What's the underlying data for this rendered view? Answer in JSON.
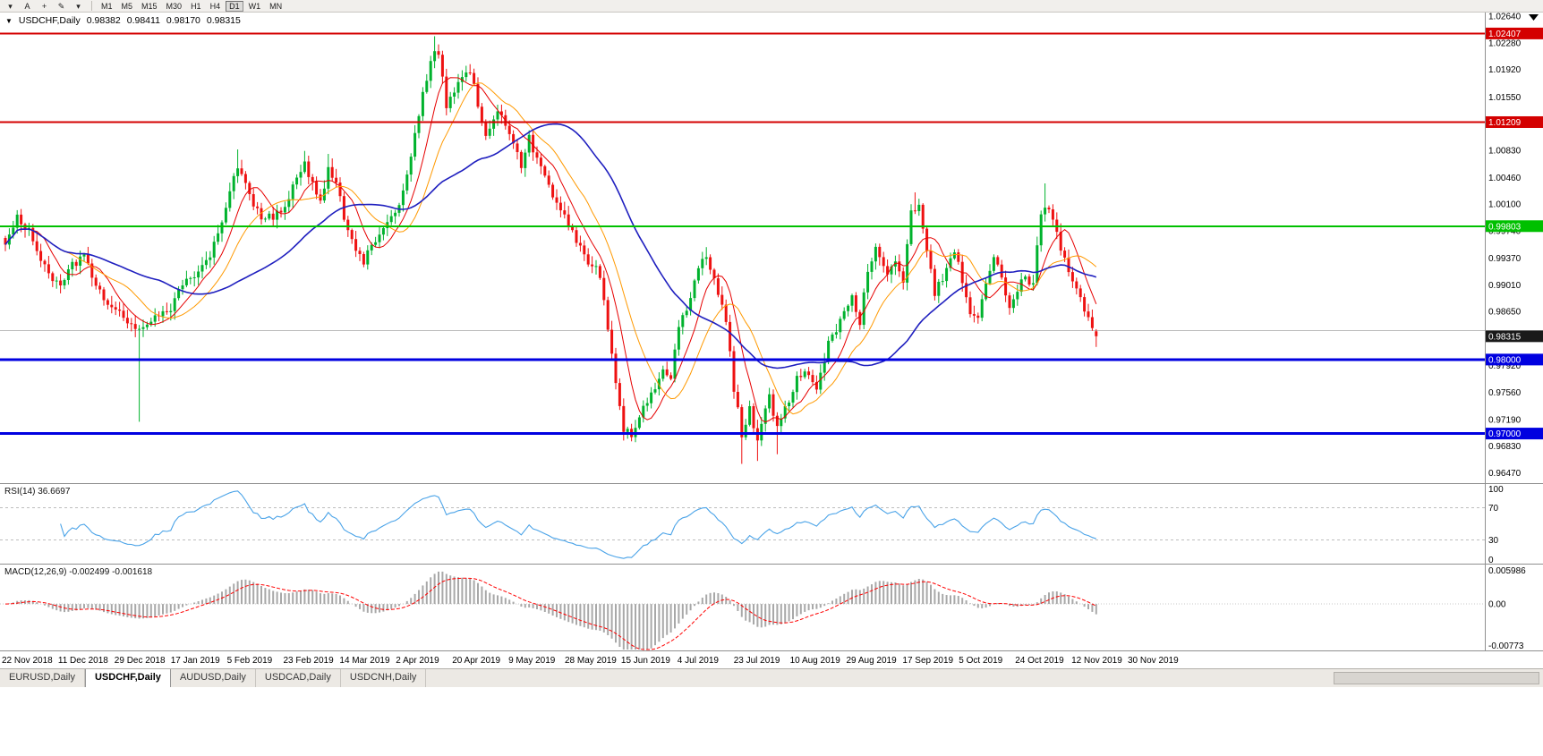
{
  "toolbar": {
    "tools": [
      {
        "name": "chart-menu",
        "glyph": "▾"
      },
      {
        "name": "text-tool",
        "glyph": "A"
      },
      {
        "name": "crosshair-tool",
        "glyph": "+"
      },
      {
        "name": "draw-tools",
        "glyph": "✎"
      },
      {
        "name": "draw-tools-more",
        "glyph": "▾"
      }
    ],
    "timeframes": [
      {
        "label": "M1",
        "active": false
      },
      {
        "label": "M5",
        "active": false
      },
      {
        "label": "M15",
        "active": false
      },
      {
        "label": "M30",
        "active": false
      },
      {
        "label": "H1",
        "active": false
      },
      {
        "label": "H4",
        "active": false
      },
      {
        "label": "D1",
        "active": true
      },
      {
        "label": "W1",
        "active": false
      },
      {
        "label": "MN",
        "active": false
      }
    ]
  },
  "header": {
    "symbol": "USDCHF,Daily",
    "open": "0.98382",
    "high": "0.98411",
    "low": "0.98170",
    "close": "0.98315"
  },
  "tabs": [
    {
      "label": "EURUSD,Daily",
      "active": false
    },
    {
      "label": "USDCHF,Daily",
      "active": true
    },
    {
      "label": "AUDUSD,Daily",
      "active": false
    },
    {
      "label": "USDCAD,Daily",
      "active": false
    },
    {
      "label": "USDCNH,Daily",
      "active": false
    }
  ],
  "chart_data": {
    "type": "candlestick",
    "symbol": "USDCHF",
    "timeframe": "Daily",
    "last": {
      "open": 0.98382,
      "high": 0.98411,
      "low": 0.9817,
      "close": 0.98315
    },
    "price_axis": {
      "top": 1.0269,
      "bottom": 0.9633,
      "ticks": [
        "1.02640",
        "1.02280",
        "1.01920",
        "1.01550",
        "1.00830",
        "1.00460",
        "1.00100",
        "0.99740",
        "0.99370",
        "0.99010",
        "0.98650",
        "0.97920",
        "0.97560",
        "0.97190",
        "0.96830",
        "0.96470"
      ]
    },
    "hlines": [
      {
        "price": 1.02407,
        "color": "#d40000",
        "width": 2,
        "label": "1.02407"
      },
      {
        "price": 1.01209,
        "color": "#d40000",
        "width": 2,
        "label": "1.01209"
      },
      {
        "price": 0.99803,
        "color": "#00c000",
        "width": 2,
        "label": "0.99803"
      },
      {
        "price": 0.9839,
        "color": "#bcbcbc",
        "width": 1,
        "label": null
      },
      {
        "price": 0.98,
        "color": "#0000e0",
        "width": 3,
        "label": "0.98000"
      },
      {
        "price": 0.97,
        "color": "#0000e0",
        "width": 3,
        "label": "0.97000"
      }
    ],
    "price_marker": {
      "price": 0.98315,
      "text": "0.98315",
      "bg": "#1a1a1a",
      "fg": "#ffffff"
    },
    "colors": {
      "up": "#00b22d",
      "down": "#ee1111",
      "ma_fast": "#e60000",
      "ma_mid": "#ff9900",
      "ma_slow": "#1f1fbf",
      "rsi": "#4aa3e8",
      "macd_hist": "#a8a8a8",
      "macd_signal": "#ff0000"
    },
    "candles": {
      "count": 278,
      "anchors": [
        [
          0,
          0.9955
        ],
        [
          3,
          0.999
        ],
        [
          6,
          0.9975
        ],
        [
          9,
          0.993
        ],
        [
          12,
          0.9912
        ],
        [
          14,
          0.9905
        ],
        [
          17,
          0.993
        ],
        [
          20,
          0.9938
        ],
        [
          23,
          0.99
        ],
        [
          26,
          0.9878
        ],
        [
          28,
          0.9868
        ],
        [
          31,
          0.9852
        ],
        [
          34,
          0.9838
        ],
        [
          36,
          0.985
        ],
        [
          39,
          0.9862
        ],
        [
          42,
          0.9872
        ],
        [
          45,
          0.9898
        ],
        [
          48,
          0.9912
        ],
        [
          51,
          0.9932
        ],
        [
          54,
          0.9968
        ],
        [
          57,
          1.0025
        ],
        [
          59,
          1.0062
        ],
        [
          61,
          1.0038
        ],
        [
          63,
          1.001
        ],
        [
          66,
          0.9988
        ],
        [
          69,
          0.9998
        ],
        [
          71,
          1.001
        ],
        [
          74,
          1.0048
        ],
        [
          76,
          1.0066
        ],
        [
          78,
          1.0038
        ],
        [
          80,
          1.001
        ],
        [
          82,
          1.0056
        ],
        [
          84,
          1.004
        ],
        [
          86,
          0.9995
        ],
        [
          89,
          0.9952
        ],
        [
          91,
          0.9935
        ],
        [
          94,
          0.9962
        ],
        [
          97,
          0.9985
        ],
        [
          100,
          1.0008
        ],
        [
          103,
          1.0078
        ],
        [
          106,
          1.0158
        ],
        [
          108,
          1.0205
        ],
        [
          110,
          1.0218
        ],
        [
          112,
          1.0142
        ],
        [
          115,
          1.0178
        ],
        [
          117,
          1.0192
        ],
        [
          119,
          1.017
        ],
        [
          122,
          1.0098
        ],
        [
          125,
          1.0135
        ],
        [
          128,
          1.011
        ],
        [
          131,
          1.0065
        ],
        [
          133,
          1.0098
        ],
        [
          136,
          1.0058
        ],
        [
          139,
          1.0022
        ],
        [
          141,
          1.0002
        ],
        [
          144,
          0.9972
        ],
        [
          147,
          0.9938
        ],
        [
          150,
          0.9928
        ],
        [
          152,
          0.988
        ],
        [
          155,
          0.9768
        ],
        [
          157,
          0.9708
        ],
        [
          159,
          0.9698
        ],
        [
          161,
          0.9722
        ],
        [
          164,
          0.9752
        ],
        [
          167,
          0.9788
        ],
        [
          169,
          0.9772
        ],
        [
          171,
          0.9848
        ],
        [
          174,
          0.9882
        ],
        [
          176,
          0.992
        ],
        [
          178,
          0.9942
        ],
        [
          180,
          0.9905
        ],
        [
          183,
          0.9852
        ],
        [
          185,
          0.9762
        ],
        [
          187,
          0.9698
        ],
        [
          189,
          0.9738
        ],
        [
          191,
          0.9688
        ],
        [
          194,
          0.9748
        ],
        [
          196,
          0.9712
        ],
        [
          199,
          0.9745
        ],
        [
          201,
          0.9772
        ],
        [
          203,
          0.9785
        ],
        [
          206,
          0.9758
        ],
        [
          209,
          0.982
        ],
        [
          212,
          0.9855
        ],
        [
          215,
          0.9882
        ],
        [
          217,
          0.9852
        ],
        [
          219,
          0.9918
        ],
        [
          221,
          0.9948
        ],
        [
          224,
          0.9912
        ],
        [
          226,
          0.9938
        ],
        [
          228,
          0.9902
        ],
        [
          230,
          0.9998
        ],
        [
          232,
          1.0005
        ],
        [
          234,
          0.9952
        ],
        [
          236,
          0.9892
        ],
        [
          239,
          0.9922
        ],
        [
          241,
          0.9948
        ],
        [
          243,
          0.9905
        ],
        [
          245,
          0.9858
        ],
        [
          247,
          0.9852
        ],
        [
          249,
          0.9902
        ],
        [
          251,
          0.9942
        ],
        [
          253,
          0.9912
        ],
        [
          255,
          0.9872
        ],
        [
          257,
          0.9892
        ],
        [
          259,
          0.9912
        ],
        [
          261,
          0.9902
        ],
        [
          263,
          0.9998
        ],
        [
          265,
          1.0005
        ],
        [
          267,
          0.9972
        ],
        [
          269,
          0.9932
        ],
        [
          271,
          0.9902
        ],
        [
          273,
          0.9878
        ],
        [
          275,
          0.9852
        ],
        [
          276,
          0.9845
        ],
        [
          277,
          0.98315
        ]
      ],
      "spikes": [
        {
          "i": 34,
          "low": 0.9716
        },
        {
          "i": 59,
          "high": 1.0084
        },
        {
          "i": 76,
          "high": 1.0082
        },
        {
          "i": 82,
          "high": 1.0078
        },
        {
          "i": 109,
          "high": 1.0237
        },
        {
          "i": 110,
          "high": 1.0226
        },
        {
          "i": 158,
          "low": 0.9693
        },
        {
          "i": 178,
          "high": 0.9952
        },
        {
          "i": 187,
          "low": 0.9659
        },
        {
          "i": 191,
          "low": 0.9663
        },
        {
          "i": 196,
          "low": 0.9672
        },
        {
          "i": 221,
          "high": 0.9953
        },
        {
          "i": 231,
          "high": 1.0026
        },
        {
          "i": 264,
          "high": 1.0038
        }
      ]
    },
    "moving_averages": [
      {
        "period": 8,
        "colorKey": "ma_fast",
        "width": 1
      },
      {
        "period": 16,
        "colorKey": "ma_mid",
        "width": 1
      },
      {
        "period": 40,
        "colorKey": "ma_slow",
        "width": 1.6
      }
    ],
    "rsi": {
      "label": "RSI(14) 36.6697",
      "period": 14,
      "current": 36.6697,
      "levels": [
        70,
        30
      ],
      "ticks": [
        "100",
        "70",
        "30",
        "0"
      ]
    },
    "macd": {
      "label": "MACD(12,26,9) -0.002499 -0.001618",
      "fast": 12,
      "slow": 26,
      "signal": 9,
      "values": [
        -0.002499,
        -0.001618
      ],
      "range": {
        "top": 0.0068,
        "bottom": -0.008
      },
      "ticks": [
        "0.005986",
        "0.00",
        "-0.00773"
      ]
    },
    "x_labels": [
      "22 Nov 2018",
      "11 Dec 2018",
      "29 Dec 2018",
      "17 Jan 2019",
      "5 Feb 2019",
      "23 Feb 2019",
      "14 Mar 2019",
      "2 Apr 2019",
      "20 Apr 2019",
      "9 May 2019",
      "28 May 2019",
      "15 Jun 2019",
      "4 Jul 2019",
      "23 Jul 2019",
      "10 Aug 2019",
      "29 Aug 2019",
      "17 Sep 2019",
      "5 Oct 2019",
      "24 Oct 2019",
      "12 Nov 2019",
      "30 Nov 2019"
    ]
  }
}
